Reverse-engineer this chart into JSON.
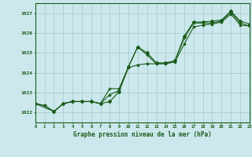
{
  "xlabel": "Graphe pression niveau de la mer (hPa)",
  "xlim": [
    0,
    23
  ],
  "ylim": [
    1021.5,
    1027.5
  ],
  "yticks": [
    1022,
    1023,
    1024,
    1025,
    1026,
    1027
  ],
  "xticks": [
    0,
    1,
    2,
    3,
    4,
    5,
    6,
    7,
    8,
    9,
    10,
    11,
    12,
    13,
    14,
    15,
    16,
    17,
    18,
    19,
    20,
    21,
    22,
    23
  ],
  "background_color": "#cce8ec",
  "grid_color": "#9dc8ce",
  "line_color": "#1a5c1a",
  "line1_x": [
    0,
    1,
    2,
    3,
    4,
    5,
    6,
    7,
    8,
    9,
    10,
    11,
    12,
    13,
    14,
    15,
    16,
    17,
    18,
    19,
    20,
    21,
    22,
    23
  ],
  "line1_y": [
    1022.45,
    1022.35,
    1022.05,
    1022.45,
    1022.55,
    1022.55,
    1022.55,
    1022.45,
    1023.2,
    1023.2,
    1024.3,
    1025.3,
    1024.9,
    1024.45,
    1024.45,
    1024.6,
    1025.75,
    1026.5,
    1026.5,
    1026.5,
    1026.6,
    1027.05,
    1026.5,
    1026.35
  ],
  "line2_x": [
    0,
    1,
    2,
    3,
    4,
    5,
    6,
    7,
    8,
    9,
    10,
    11,
    12,
    13,
    14,
    15,
    16,
    17,
    18,
    19,
    20,
    21,
    22,
    23
  ],
  "line2_y": [
    1022.45,
    1022.35,
    1022.05,
    1022.45,
    1022.55,
    1022.55,
    1022.55,
    1022.45,
    1022.9,
    1023.1,
    1024.25,
    1024.4,
    1024.45,
    1024.45,
    1024.45,
    1024.55,
    1025.45,
    1026.3,
    1026.4,
    1026.45,
    1026.55,
    1026.95,
    1026.4,
    1026.35
  ],
  "line3_x": [
    0,
    2,
    3,
    4,
    5,
    6,
    7,
    8,
    9,
    10,
    11,
    12,
    13,
    14,
    15,
    16,
    17,
    18,
    19,
    20,
    21,
    22,
    23
  ],
  "line3_y": [
    1022.45,
    1022.05,
    1022.45,
    1022.55,
    1022.55,
    1022.55,
    1022.45,
    1022.55,
    1023.05,
    1024.3,
    1025.3,
    1025.0,
    1024.5,
    1024.5,
    1024.6,
    1025.85,
    1026.55,
    1026.55,
    1026.6,
    1026.65,
    1027.1,
    1026.6,
    1026.45
  ]
}
